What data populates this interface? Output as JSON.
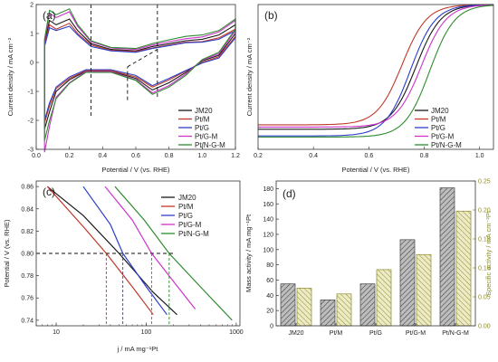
{
  "colors": {
    "JM20": "#1a1a1a",
    "Pt/M": "#c0392b",
    "Pt/G": "#2c3ec8",
    "Pt/G-M": "#cc33cc",
    "Pt/N-G-M": "#2e8b2e",
    "mass_bar": "#8c8c8c",
    "specific_bar": "#d9d9a3",
    "specific_axis": "#8c8c2a"
  },
  "chart_data": [
    {
      "panel": "(a)",
      "type": "line",
      "xlabel": "Potential / V (vs. RHE)",
      "ylabel": "Current density / mA cm⁻²",
      "xlim": [
        0.0,
        1.2
      ],
      "ylim": [
        -3,
        2
      ],
      "xticks": [
        0.0,
        0.2,
        0.4,
        0.6,
        0.8,
        1.0,
        1.2
      ],
      "yticks": [
        -3,
        -2,
        -1,
        0,
        1,
        2
      ],
      "xtick_labels": [
        "0.0",
        "0.2",
        "0.4",
        "0.6",
        "0.8",
        "1.0",
        "1.2"
      ],
      "ytick_labels": [
        "-3",
        "-2",
        "-1",
        "0",
        "1",
        "2"
      ],
      "legend": [
        "JM20",
        "Pt/M",
        "Pt/G",
        "Pt/G-M",
        "Pt/N-G-M"
      ],
      "legend_position": "bottom-right",
      "series": [
        {
          "name": "JM20",
          "anodic": [
            [
              0.05,
              0.7
            ],
            [
              0.08,
              1.45
            ],
            [
              0.12,
              1.3
            ],
            [
              0.2,
              1.5
            ],
            [
              0.25,
              1.1
            ],
            [
              0.33,
              0.65
            ],
            [
              0.45,
              0.45
            ],
            [
              0.6,
              0.4
            ],
            [
              0.7,
              0.55
            ],
            [
              0.8,
              0.65
            ],
            [
              0.9,
              0.75
            ],
            [
              1.0,
              0.8
            ],
            [
              1.1,
              0.95
            ],
            [
              1.2,
              1.3
            ]
          ],
          "cathodic": [
            [
              1.2,
              1.0
            ],
            [
              1.1,
              0.25
            ],
            [
              1.0,
              0.05
            ],
            [
              0.9,
              -0.35
            ],
            [
              0.8,
              -0.7
            ],
            [
              0.7,
              -0.95
            ],
            [
              0.6,
              -0.55
            ],
            [
              0.45,
              -0.3
            ],
            [
              0.3,
              -0.3
            ],
            [
              0.2,
              -0.6
            ],
            [
              0.12,
              -1.0
            ],
            [
              0.08,
              -1.7
            ],
            [
              0.05,
              -2.3
            ]
          ]
        },
        {
          "name": "Pt/M",
          "anodic": [
            [
              0.05,
              0.6
            ],
            [
              0.08,
              1.3
            ],
            [
              0.12,
              1.15
            ],
            [
              0.2,
              1.35
            ],
            [
              0.25,
              1.0
            ],
            [
              0.33,
              0.6
            ],
            [
              0.45,
              0.42
            ],
            [
              0.6,
              0.38
            ],
            [
              0.7,
              0.5
            ],
            [
              0.8,
              0.6
            ],
            [
              0.9,
              0.7
            ],
            [
              1.0,
              0.72
            ],
            [
              1.1,
              0.85
            ],
            [
              1.2,
              1.15
            ]
          ],
          "cathodic": [
            [
              1.2,
              0.9
            ],
            [
              1.1,
              0.2
            ],
            [
              1.0,
              0.0
            ],
            [
              0.9,
              -0.3
            ],
            [
              0.8,
              -0.6
            ],
            [
              0.7,
              -0.85
            ],
            [
              0.6,
              -0.5
            ],
            [
              0.45,
              -0.28
            ],
            [
              0.3,
              -0.28
            ],
            [
              0.2,
              -0.55
            ],
            [
              0.12,
              -0.9
            ],
            [
              0.08,
              -1.5
            ],
            [
              0.05,
              -2.1
            ]
          ]
        },
        {
          "name": "Pt/G",
          "anodic": [
            [
              0.05,
              0.55
            ],
            [
              0.08,
              1.2
            ],
            [
              0.12,
              1.1
            ],
            [
              0.2,
              1.25
            ],
            [
              0.25,
              0.95
            ],
            [
              0.33,
              0.55
            ],
            [
              0.45,
              0.4
            ],
            [
              0.6,
              0.35
            ],
            [
              0.7,
              0.48
            ],
            [
              0.8,
              0.58
            ],
            [
              0.9,
              0.68
            ],
            [
              1.0,
              0.7
            ],
            [
              1.1,
              0.8
            ],
            [
              1.2,
              1.1
            ]
          ],
          "cathodic": [
            [
              1.2,
              0.85
            ],
            [
              1.1,
              0.15
            ],
            [
              1.0,
              -0.02
            ],
            [
              0.9,
              -0.28
            ],
            [
              0.8,
              -0.55
            ],
            [
              0.7,
              -0.8
            ],
            [
              0.6,
              -0.45
            ],
            [
              0.45,
              -0.25
            ],
            [
              0.3,
              -0.25
            ],
            [
              0.2,
              -0.5
            ],
            [
              0.12,
              -0.85
            ],
            [
              0.08,
              -1.4
            ],
            [
              0.05,
              -2.0
            ]
          ]
        },
        {
          "name": "Pt/G-M",
          "anodic": [
            [
              0.05,
              0.75
            ],
            [
              0.08,
              1.7
            ],
            [
              0.12,
              1.55
            ],
            [
              0.2,
              1.75
            ],
            [
              0.25,
              1.25
            ],
            [
              0.33,
              0.72
            ],
            [
              0.45,
              0.5
            ],
            [
              0.6,
              0.45
            ],
            [
              0.7,
              0.6
            ],
            [
              0.8,
              0.72
            ],
            [
              0.9,
              0.82
            ],
            [
              1.0,
              0.88
            ],
            [
              1.1,
              1.05
            ],
            [
              1.2,
              1.45
            ]
          ],
          "cathodic": [
            [
              1.2,
              1.1
            ],
            [
              1.1,
              0.3
            ],
            [
              1.0,
              0.08
            ],
            [
              0.9,
              -0.4
            ],
            [
              0.8,
              -0.8
            ],
            [
              0.7,
              -1.05
            ],
            [
              0.6,
              -0.6
            ],
            [
              0.45,
              -0.32
            ],
            [
              0.3,
              -0.32
            ],
            [
              0.2,
              -0.7
            ],
            [
              0.12,
              -1.2
            ],
            [
              0.08,
              -2.2
            ],
            [
              0.05,
              -3.1
            ]
          ]
        },
        {
          "name": "Pt/N-G-M",
          "anodic": [
            [
              0.05,
              0.8
            ],
            [
              0.08,
              1.8
            ],
            [
              0.12,
              1.65
            ],
            [
              0.2,
              1.85
            ],
            [
              0.25,
              1.3
            ],
            [
              0.33,
              0.75
            ],
            [
              0.45,
              0.52
            ],
            [
              0.6,
              0.48
            ],
            [
              0.7,
              0.65
            ],
            [
              0.8,
              0.78
            ],
            [
              0.9,
              0.9
            ],
            [
              1.0,
              0.95
            ],
            [
              1.1,
              1.1
            ],
            [
              1.2,
              1.5
            ]
          ],
          "cathodic": [
            [
              1.2,
              1.15
            ],
            [
              1.1,
              0.35
            ],
            [
              1.0,
              0.1
            ],
            [
              0.9,
              -0.45
            ],
            [
              0.8,
              -0.85
            ],
            [
              0.7,
              -1.1
            ],
            [
              0.6,
              -0.62
            ],
            [
              0.45,
              -0.34
            ],
            [
              0.3,
              -0.34
            ],
            [
              0.2,
              -0.72
            ],
            [
              0.12,
              -1.25
            ],
            [
              0.08,
              -2.0
            ],
            [
              0.05,
              -2.7
            ]
          ]
        }
      ],
      "reference_lines": [
        {
          "x1": 0.33,
          "y1": 2.0,
          "x2": 0.33,
          "y2": -1.9
        },
        {
          "x1": 0.73,
          "y1": 2.0,
          "x2": 0.73,
          "y2": -1.25
        },
        {
          "x1": 0.55,
          "y1": -1.3,
          "x2": 0.55,
          "y2": -0.15
        },
        {
          "x1": 0.55,
          "y1": -0.15,
          "x2": 0.73,
          "y2": 0.45
        }
      ]
    },
    {
      "panel": "(b)",
      "type": "line",
      "xlabel": "Potential / V (vs. RHE)",
      "ylabel": "Current density / mA cm⁻²",
      "xlim": [
        0.2,
        1.05
      ],
      "ylim": [
        -6.5,
        0
      ],
      "xticks": [
        0.2,
        0.4,
        0.6,
        0.8,
        1.0
      ],
      "xtick_labels": [
        "0.2",
        "0.4",
        "0.6",
        "0.8",
        "1.0"
      ],
      "legend": [
        "JM20",
        "Pt/M",
        "Pt/G",
        "Pt/G-M",
        "Pt/N-G-M"
      ],
      "legend_position": "bottom-right",
      "series": [
        {
          "name": "JM20",
          "plateau": -5.6,
          "half_wave": 0.77
        },
        {
          "name": "Pt/M",
          "plateau": -5.4,
          "half_wave": 0.72
        },
        {
          "name": "Pt/G",
          "plateau": -5.9,
          "half_wave": 0.75
        },
        {
          "name": "Pt/G-M",
          "plateau": -5.5,
          "half_wave": 0.79
        },
        {
          "name": "Pt/N-G-M",
          "plateau": -5.95,
          "half_wave": 0.82
        }
      ]
    },
    {
      "panel": "(c)",
      "type": "line",
      "xlabel": "j / mA mg⁻¹Pt",
      "ylabel": "Potential / V (vs. RHE)",
      "xscale": "log",
      "xlim": [
        6,
        1100
      ],
      "ylim": [
        0.735,
        0.865
      ],
      "xticks": [
        10,
        100,
        1000
      ],
      "xtick_labels": [
        "10",
        "100",
        "1000"
      ],
      "yticks": [
        0.74,
        0.76,
        0.78,
        0.8,
        0.82,
        0.84,
        0.86
      ],
      "ytick_labels": [
        "0.74",
        "0.76",
        "0.78",
        "0.80",
        "0.82",
        "0.84",
        "0.86"
      ],
      "legend": [
        "JM20",
        "Pt/M",
        "Pt/G",
        "Pt/G-M",
        "Pt/N-G-M"
      ],
      "legend_position": "top-right",
      "series": [
        {
          "name": "JM20",
          "x": [
            8,
            20,
            50,
            120,
            220
          ],
          "y": [
            0.86,
            0.834,
            0.8,
            0.765,
            0.745
          ]
        },
        {
          "name": "Pt/M",
          "x": [
            8,
            20,
            36,
            70,
            120
          ],
          "y": [
            0.86,
            0.824,
            0.8,
            0.77,
            0.745
          ]
        },
        {
          "name": "Pt/G",
          "x": [
            20,
            40,
            55,
            100,
            170
          ],
          "y": [
            0.86,
            0.826,
            0.8,
            0.77,
            0.745
          ]
        },
        {
          "name": "Pt/G-M",
          "x": [
            35,
            70,
            115,
            200,
            350
          ],
          "y": [
            0.86,
            0.83,
            0.8,
            0.775,
            0.75
          ]
        },
        {
          "name": "Pt/N-G-M",
          "x": [
            45,
            95,
            180,
            400,
            900
          ],
          "y": [
            0.86,
            0.83,
            0.8,
            0.77,
            0.74
          ]
        }
      ],
      "reference_lines": [
        {
          "type": "horizontal",
          "y": 0.8
        },
        {
          "type": "vertical",
          "x": 36
        },
        {
          "type": "vertical",
          "x": 55
        },
        {
          "type": "vertical",
          "x": 115
        },
        {
          "type": "vertical",
          "x": 180
        }
      ]
    },
    {
      "panel": "(d)",
      "type": "bar",
      "categories": [
        "JM20",
        "Pt/M",
        "Pt/G",
        "Pt/G-M",
        "Pt/N-G-M"
      ],
      "ylabel": "Mass activity / mA mg⁻¹Pt",
      "y2label": "Specific activity / mA cm⁻²Pt",
      "ylim": [
        0,
        190
      ],
      "y2lim": [
        0,
        0.25
      ],
      "yticks": [
        0,
        20,
        40,
        60,
        80,
        100,
        120,
        140,
        160,
        180
      ],
      "ytick_labels": [
        "0",
        "20",
        "40",
        "60",
        "80",
        "100",
        "120",
        "140",
        "160",
        "180"
      ],
      "y2ticks": [
        0.0,
        0.05,
        0.1,
        0.15,
        0.2,
        0.25
      ],
      "y2tick_labels": [
        "0.00",
        "0.05",
        "0.10",
        "0.15",
        "0.20",
        "0.25"
      ],
      "series": [
        {
          "name": "Mass activity",
          "values": [
            55,
            34,
            55,
            113,
            181
          ]
        },
        {
          "name": "Specific activity",
          "values": [
            0.065,
            0.055,
            0.097,
            0.123,
            0.198
          ]
        }
      ]
    }
  ]
}
